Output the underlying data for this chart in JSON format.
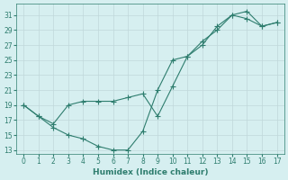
{
  "line1_x": [
    0,
    1,
    2,
    3,
    4,
    5,
    6,
    7,
    8,
    9,
    10,
    11,
    12,
    13,
    14,
    15,
    16,
    17
  ],
  "line1_y": [
    19,
    17.5,
    16,
    15,
    14.5,
    13.5,
    13,
    13,
    15.5,
    21,
    25,
    25.5,
    27.5,
    29,
    31,
    31.5,
    29.5,
    30
  ],
  "line2_x": [
    0,
    1,
    2,
    3,
    4,
    5,
    6,
    7,
    8,
    9,
    10,
    11,
    12,
    13,
    14,
    15,
    16,
    17
  ],
  "line2_y": [
    19,
    17.5,
    16.5,
    19.0,
    19.5,
    19.5,
    19.5,
    20.0,
    20.5,
    17.5,
    21.5,
    25.5,
    27.0,
    29.5,
    31.0,
    30.5,
    29.5,
    30.0
  ],
  "line_color": "#2e7d6e",
  "bg_color": "#d6eff0",
  "grid_color": "#c0d8da",
  "xlabel": "Humidex (Indice chaleur)",
  "yticks": [
    13,
    15,
    17,
    19,
    21,
    23,
    25,
    27,
    29,
    31
  ],
  "xticks": [
    0,
    1,
    2,
    3,
    4,
    5,
    6,
    7,
    8,
    9,
    10,
    11,
    12,
    13,
    14,
    15,
    16,
    17
  ],
  "ylim": [
    12.5,
    32.5
  ],
  "xlim": [
    -0.5,
    17.5
  ]
}
